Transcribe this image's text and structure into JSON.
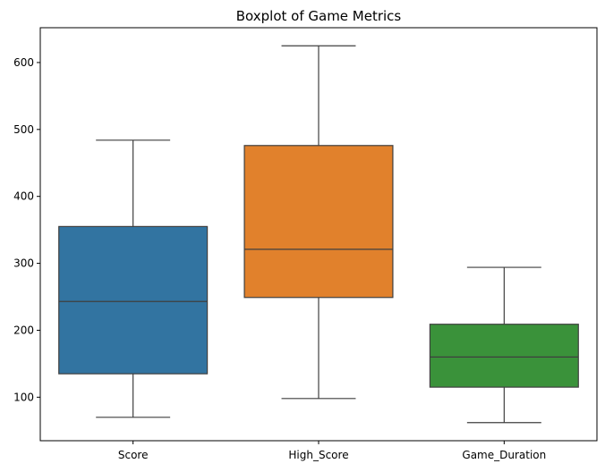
{
  "chart_data": {
    "type": "boxplot",
    "title": "Boxplot of Game Metrics",
    "xlabel": "",
    "ylabel": "",
    "ylim": [
      35,
      652
    ],
    "yticks": [
      100,
      200,
      300,
      400,
      500,
      600
    ],
    "grid": false,
    "categories": [
      "Score",
      "High_Score",
      "Game_Duration"
    ],
    "boxes": [
      {
        "category": "Score",
        "whisker_low": 70,
        "q1": 135,
        "median": 243,
        "q3": 355,
        "whisker_high": 484,
        "color": "#3274a1"
      },
      {
        "category": "High_Score",
        "whisker_low": 98,
        "q1": 249,
        "median": 321,
        "q3": 476,
        "whisker_high": 625,
        "color": "#e1812c"
      },
      {
        "category": "Game_Duration",
        "whisker_low": 62,
        "q1": 115,
        "median": 160,
        "q3": 209,
        "whisker_high": 294,
        "color": "#3a923a"
      }
    ]
  }
}
